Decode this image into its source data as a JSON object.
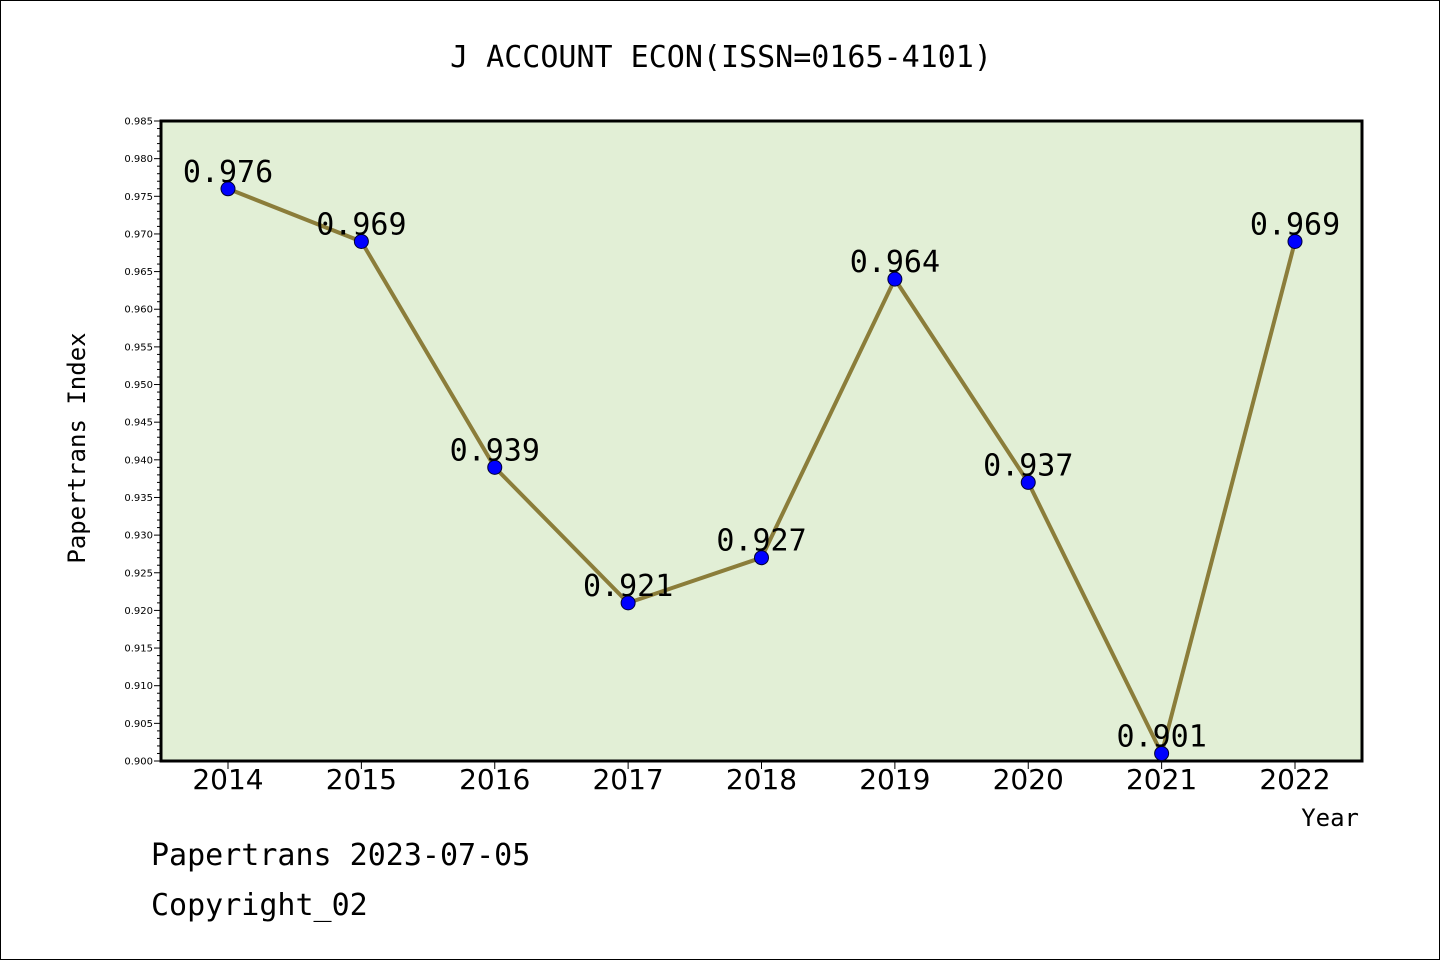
{
  "chart_data": {
    "type": "line",
    "title": "J ACCOUNT ECON(ISSN=0165-4101)",
    "xlabel": "Year",
    "ylabel": "Papertrans Index",
    "categories": [
      "2014",
      "2015",
      "2016",
      "2017",
      "2018",
      "2019",
      "2020",
      "2021",
      "2022"
    ],
    "series": [
      {
        "values": [
          0.976,
          0.969,
          0.939,
          0.921,
          0.927,
          0.964,
          0.937,
          0.901,
          0.969
        ],
        "data_labels": [
          "0.976",
          "0.969",
          "0.939",
          "0.921",
          "0.927",
          "0.964",
          "0.937",
          "0.901",
          "0.969"
        ],
        "line_color": "#8b7d3a",
        "marker_color": "#0000ff"
      }
    ],
    "ylim": [
      0.9,
      0.985
    ],
    "y_tick_labels": [
      "0.900",
      "0.905",
      "0.910",
      "0.915",
      "0.920",
      "0.925",
      "0.930",
      "0.935",
      "0.940",
      "0.945",
      "0.950",
      "0.955",
      "0.960",
      "0.965",
      "0.970",
      "0.975",
      "0.980",
      "0.985"
    ],
    "plot_background": "#e2efd6",
    "grid": false,
    "legend": "none"
  },
  "footer": {
    "date_line": "Papertrans 2023-07-05",
    "copyright_line": "Copyright_02"
  }
}
